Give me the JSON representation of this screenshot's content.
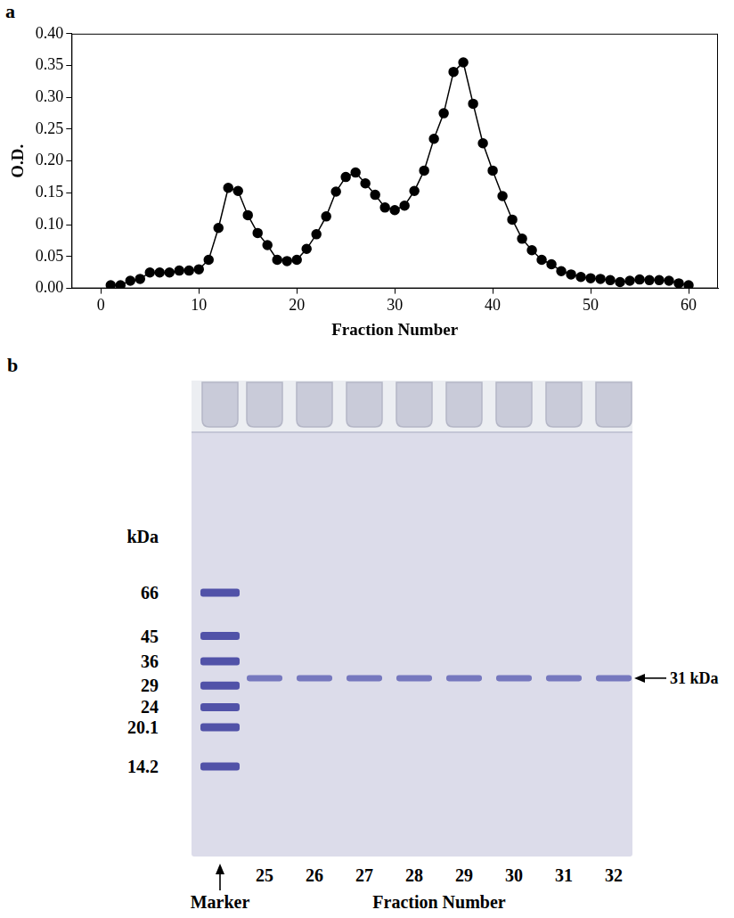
{
  "chart_data": {
    "type": "line",
    "panel_label": "a",
    "x_label": "Fraction Number",
    "y_label": "O.D.",
    "x": [
      1,
      2,
      3,
      4,
      5,
      6,
      7,
      8,
      9,
      10,
      11,
      12,
      13,
      14,
      15,
      16,
      17,
      18,
      19,
      20,
      21,
      22,
      23,
      24,
      25,
      26,
      27,
      28,
      29,
      30,
      31,
      32,
      33,
      34,
      35,
      36,
      37,
      38,
      39,
      40,
      41,
      42,
      43,
      44,
      45,
      46,
      47,
      48,
      49,
      50,
      51,
      52,
      53,
      54,
      55,
      56,
      57,
      58,
      59,
      60
    ],
    "values": [
      0.005,
      0.005,
      0.012,
      0.015,
      0.025,
      0.025,
      0.025,
      0.028,
      0.028,
      0.03,
      0.045,
      0.095,
      0.158,
      0.153,
      0.115,
      0.087,
      0.068,
      0.045,
      0.043,
      0.045,
      0.062,
      0.085,
      0.113,
      0.152,
      0.175,
      0.182,
      0.165,
      0.147,
      0.127,
      0.123,
      0.13,
      0.153,
      0.185,
      0.235,
      0.275,
      0.34,
      0.355,
      0.29,
      0.228,
      0.185,
      0.145,
      0.108,
      0.078,
      0.06,
      0.045,
      0.038,
      0.027,
      0.022,
      0.018,
      0.016,
      0.015,
      0.013,
      0.01,
      0.012,
      0.014,
      0.013,
      0.013,
      0.012,
      0.008,
      0.005
    ],
    "color": "#000000",
    "marker": "circle",
    "xlim": [
      -3,
      63
    ],
    "xticks": [
      0,
      10,
      20,
      30,
      40,
      50,
      60
    ],
    "ylim": [
      0,
      0.4
    ],
    "yticks": [
      {
        "value": 0,
        "label": "0.00"
      },
      {
        "value": 0.05,
        "label": "0.05"
      },
      {
        "value": 0.1,
        "label": "0.10"
      },
      {
        "value": 0.15,
        "label": "0.15"
      },
      {
        "value": 0.2,
        "label": "0.20"
      },
      {
        "value": 0.25,
        "label": "0.25"
      },
      {
        "value": 0.3,
        "label": "0.30"
      },
      {
        "value": 0.35,
        "label": "0.35"
      },
      {
        "value": 0.4,
        "label": "0.40"
      }
    ],
    "grid": false
  },
  "gel": {
    "panel_label": "b",
    "unit_label": "kDa",
    "marker_label": "Marker",
    "marker_bands_kda": [
      66,
      45,
      36,
      29,
      24,
      20.1,
      14.2
    ],
    "fractions": [
      25,
      26,
      27,
      28,
      29,
      30,
      31,
      32
    ],
    "x_label": "Fraction Number",
    "band": {
      "kda": 31,
      "label": "31 kDa"
    }
  }
}
